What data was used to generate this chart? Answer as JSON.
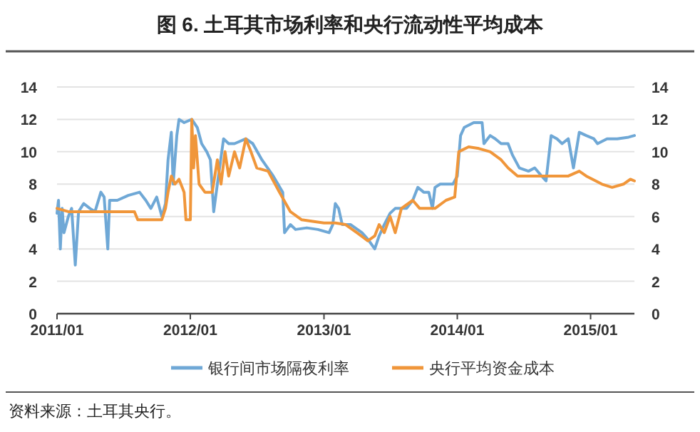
{
  "chart_data": {
    "type": "line",
    "title": "图 6. 土耳其市场利率和央行流动性平均成本",
    "annotations": [
      "资料来源：土耳其央行。"
    ],
    "xlim": [
      "2011-01",
      "2015-05"
    ],
    "xticks": [
      {
        "value": "2011-01",
        "label": "2011/01"
      },
      {
        "value": "2012-01",
        "label": "2012/01"
      },
      {
        "value": "2013-01",
        "label": "2013/01"
      },
      {
        "value": "2014-01",
        "label": "2014/01"
      },
      {
        "value": "2015-01",
        "label": "2015/01"
      }
    ],
    "ylim": [
      0,
      14
    ],
    "yticks": [
      0,
      2,
      4,
      6,
      8,
      10,
      12,
      14
    ],
    "y2lim": [
      0,
      14
    ],
    "y2ticks": [
      0,
      2,
      4,
      6,
      8,
      10,
      12,
      14
    ],
    "grid": "y",
    "legend": "bottom",
    "marker": "none",
    "line_style": "solid",
    "series": [
      {
        "name": "银行间市场隔夜利率",
        "color": "#6fa8d6",
        "x": [
          "2011-01-01",
          "2011-01-05",
          "2011-01-10",
          "2011-01-15",
          "2011-01-20",
          "2011-02-01",
          "2011-02-10",
          "2011-02-20",
          "2011-03-01",
          "2011-03-15",
          "2011-04-01",
          "2011-04-15",
          "2011-05-01",
          "2011-05-10",
          "2011-05-20",
          "2011-05-25",
          "2011-06-15",
          "2011-07-15",
          "2011-08-15",
          "2011-09-01",
          "2011-09-15",
          "2011-10-01",
          "2011-10-15",
          "2011-10-25",
          "2011-11-01",
          "2011-11-10",
          "2011-11-15",
          "2011-11-25",
          "2011-12-01",
          "2011-12-15",
          "2012-01-05",
          "2012-01-20",
          "2012-02-01",
          "2012-02-15",
          "2012-02-25",
          "2012-03-05",
          "2012-03-15",
          "2012-04-01",
          "2012-04-15",
          "2012-05-01",
          "2012-06-01",
          "2012-06-20",
          "2012-07-15",
          "2012-08-15",
          "2012-09-10",
          "2012-09-15",
          "2012-10-01",
          "2012-10-15",
          "2012-11-15",
          "2012-12-15",
          "2013-01-15",
          "2013-01-25",
          "2013-02-01",
          "2013-02-10",
          "2013-02-20",
          "2013-03-15",
          "2013-04-15",
          "2013-05-01",
          "2013-05-20",
          "2013-06-01",
          "2013-06-15",
          "2013-07-01",
          "2013-07-15",
          "2013-08-15",
          "2013-09-01",
          "2013-09-15",
          "2013-10-01",
          "2013-10-15",
          "2013-10-25",
          "2013-11-01",
          "2013-11-15",
          "2013-12-01",
          "2013-12-20",
          "2014-01-01",
          "2014-01-10",
          "2014-01-20",
          "2014-02-15",
          "2014-03-10",
          "2014-03-15",
          "2014-04-01",
          "2014-04-15",
          "2014-05-01",
          "2014-05-20",
          "2014-06-01",
          "2014-06-20",
          "2014-07-15",
          "2014-08-01",
          "2014-08-20",
          "2014-09-01",
          "2014-09-15",
          "2014-10-01",
          "2014-10-15",
          "2014-11-01",
          "2014-11-15",
          "2014-12-01",
          "2014-12-20",
          "2015-01-10",
          "2015-01-20",
          "2015-02-15",
          "2015-03-15",
          "2015-04-15",
          "2015-05-01"
        ],
        "values": [
          6.2,
          7.0,
          4.0,
          6.5,
          5.0,
          6.0,
          6.5,
          3.0,
          6.3,
          6.8,
          6.5,
          6.3,
          7.5,
          7.2,
          4.0,
          7.0,
          7.0,
          7.3,
          7.5,
          7.0,
          6.5,
          7.2,
          6.0,
          6.8,
          9.5,
          11.2,
          8.0,
          11.0,
          12.0,
          11.8,
          12.0,
          11.5,
          10.5,
          10.0,
          9.5,
          6.3,
          8.0,
          10.8,
          10.5,
          10.5,
          10.8,
          10.5,
          9.5,
          8.5,
          7.5,
          5.0,
          5.5,
          5.2,
          5.3,
          5.2,
          5.0,
          5.5,
          6.8,
          6.5,
          5.5,
          5.5,
          5.0,
          4.6,
          4.0,
          4.8,
          5.5,
          6.2,
          6.5,
          6.5,
          7.0,
          7.8,
          7.5,
          7.5,
          6.5,
          7.8,
          8.0,
          8.0,
          8.0,
          8.5,
          11.0,
          11.5,
          11.8,
          11.8,
          10.5,
          11.0,
          10.8,
          10.5,
          10.5,
          9.8,
          9.0,
          8.8,
          9.0,
          8.5,
          8.2,
          11.0,
          10.8,
          10.5,
          10.8,
          9.0,
          11.2,
          11.0,
          10.8,
          10.5,
          10.8,
          10.8,
          10.9,
          11.0
        ]
      },
      {
        "name": "央行平均资金成本",
        "color": "#f0963a",
        "x": [
          "2011-01-01",
          "2011-02-01",
          "2011-03-01",
          "2011-04-01",
          "2011-06-01",
          "2011-08-01",
          "2011-08-10",
          "2011-09-15",
          "2011-10-15",
          "2011-10-25",
          "2011-11-01",
          "2011-11-10",
          "2011-11-20",
          "2011-12-01",
          "2011-12-15",
          "2011-12-20",
          "2012-01-01",
          "2012-01-05",
          "2012-01-10",
          "2012-01-15",
          "2012-01-25",
          "2012-02-10",
          "2012-02-20",
          "2012-03-01",
          "2012-03-15",
          "2012-03-25",
          "2012-04-05",
          "2012-04-15",
          "2012-05-01",
          "2012-05-15",
          "2012-06-01",
          "2012-06-15",
          "2012-07-01",
          "2012-08-01",
          "2012-09-01",
          "2012-10-01",
          "2012-11-01",
          "2012-12-01",
          "2013-01-01",
          "2013-02-01",
          "2013-03-01",
          "2013-04-01",
          "2013-05-01",
          "2013-05-20",
          "2013-06-01",
          "2013-06-15",
          "2013-07-01",
          "2013-07-15",
          "2013-08-01",
          "2013-09-01",
          "2013-09-20",
          "2013-10-01",
          "2013-11-01",
          "2013-12-01",
          "2013-12-25",
          "2014-01-05",
          "2014-02-01",
          "2014-03-01",
          "2014-04-01",
          "2014-05-01",
          "2014-05-20",
          "2014-06-15",
          "2014-07-15",
          "2014-09-01",
          "2014-10-01",
          "2014-11-01",
          "2014-12-01",
          "2014-12-20",
          "2015-01-15",
          "2015-02-01",
          "2015-03-01",
          "2015-04-01",
          "2015-04-20",
          "2015-05-01"
        ],
        "values": [
          6.5,
          6.3,
          6.3,
          6.3,
          6.3,
          6.3,
          5.8,
          5.8,
          5.8,
          6.5,
          7.5,
          8.5,
          8.0,
          8.3,
          7.5,
          5.8,
          5.8,
          12.0,
          9.0,
          11.0,
          8.0,
          7.5,
          7.5,
          7.5,
          9.5,
          8.0,
          10.0,
          8.5,
          10.0,
          9.0,
          10.8,
          10.0,
          9.0,
          8.8,
          7.5,
          6.3,
          5.8,
          5.7,
          5.6,
          5.6,
          5.5,
          5.0,
          4.5,
          4.8,
          5.5,
          5.0,
          6.0,
          5.0,
          6.5,
          7.0,
          6.5,
          6.5,
          6.5,
          7.0,
          7.2,
          10.0,
          10.3,
          10.2,
          10.0,
          9.5,
          9.0,
          8.5,
          8.5,
          8.5,
          8.5,
          8.5,
          8.8,
          8.5,
          8.2,
          8.0,
          7.8,
          8.0,
          8.3,
          8.2
        ]
      }
    ]
  }
}
